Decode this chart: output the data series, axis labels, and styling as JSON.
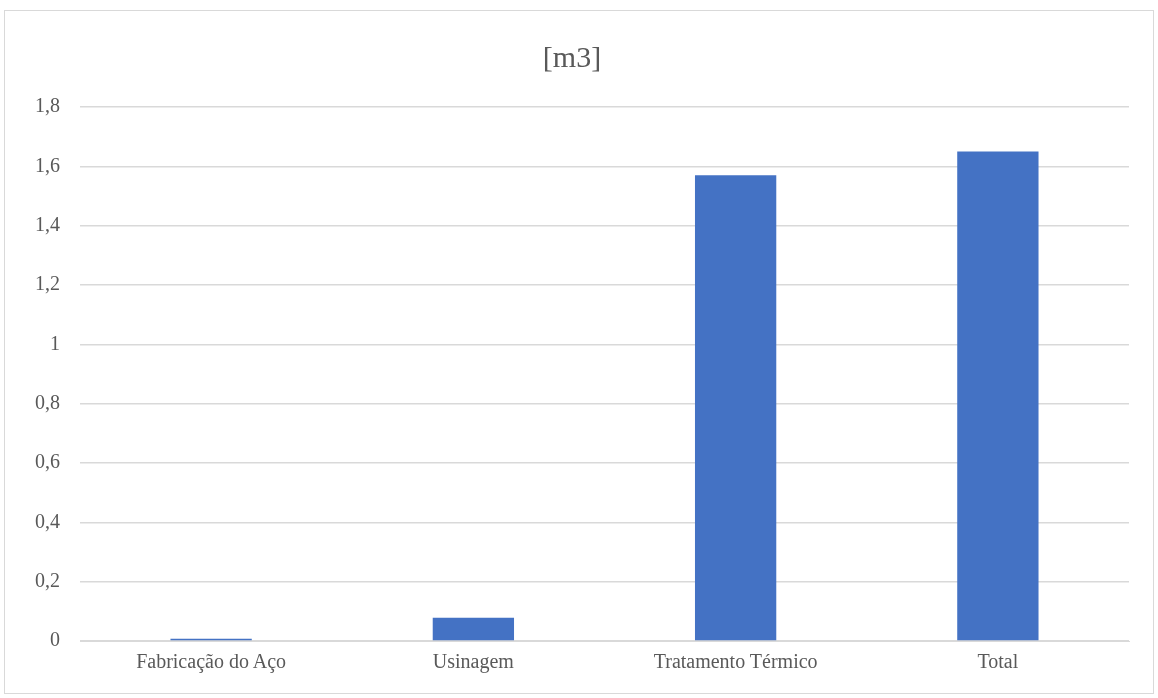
{
  "chart_data": {
    "type": "bar",
    "title": "[m3]",
    "categories": [
      "Fabricação do Aço",
      "Usinagem",
      "Tratamento Térmico",
      "Total"
    ],
    "values": [
      0.008,
      0.078,
      1.57,
      1.65
    ],
    "color": "#4472c4",
    "ylim": [
      0,
      1.8
    ],
    "yticks": [
      0,
      {
        "value": 0.2,
        "label": "0,2"
      },
      {
        "value": 0.4,
        "label": "0,4"
      },
      {
        "value": 0.6,
        "label": "0,6"
      },
      {
        "value": 0.8,
        "label": "0,8"
      },
      1,
      {
        "value": 1.2,
        "label": "1,2"
      },
      {
        "value": 1.4,
        "label": "1,4"
      },
      {
        "value": 1.6,
        "label": "1,6"
      },
      {
        "value": 1.8,
        "label": "1,8"
      }
    ],
    "grid": "y",
    "legend": false
  }
}
